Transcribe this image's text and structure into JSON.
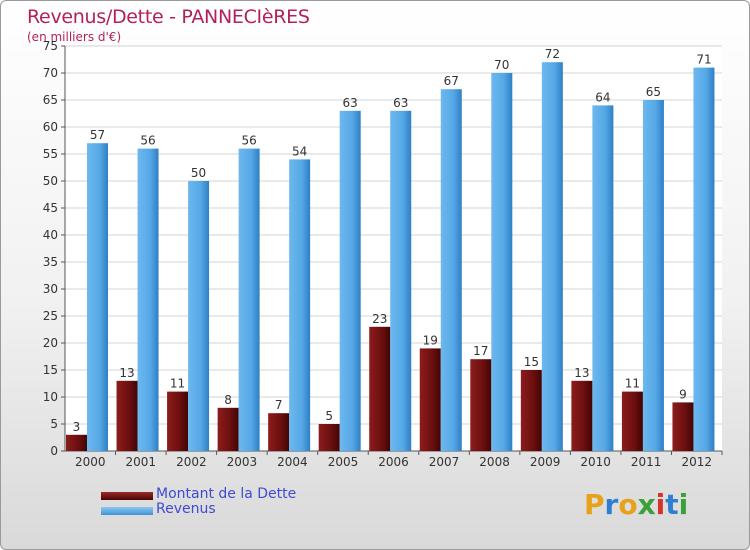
{
  "chart_data": {
    "type": "bar",
    "title": "Revenus/Dette - PANNECIèRES",
    "subtitle": "(en milliers d'€)",
    "categories": [
      "2000",
      "2001",
      "2002",
      "2003",
      "2004",
      "2005",
      "2006",
      "2007",
      "2008",
      "2009",
      "2010",
      "2011",
      "2012"
    ],
    "series": [
      {
        "name": "Montant de la Dette",
        "color": "#6b0f0f",
        "values": [
          3,
          13,
          11,
          8,
          7,
          5,
          23,
          19,
          17,
          15,
          13,
          11,
          9
        ]
      },
      {
        "name": "Revenus",
        "color": "#55a8e6",
        "values": [
          57,
          56,
          50,
          56,
          54,
          63,
          63,
          67,
          70,
          72,
          64,
          65,
          71
        ]
      }
    ],
    "ylim": [
      0,
      75
    ],
    "yticks": [
      0,
      5,
      10,
      15,
      20,
      25,
      30,
      35,
      40,
      45,
      50,
      55,
      60,
      65,
      70,
      75
    ],
    "grid": true,
    "xlabel": "",
    "ylabel": ""
  },
  "legend": {
    "debt_label": "Montant de la Dette",
    "revenue_label": "Revenus"
  },
  "logo": {
    "letters": [
      "P",
      "r",
      "o",
      "x",
      "i",
      "t",
      "i"
    ],
    "colors": [
      "#e8a21a",
      "#2f7fd0",
      "#e8a21a",
      "#3aa03a",
      "#d9322c",
      "#2f7fd0",
      "#3aa03a"
    ]
  }
}
